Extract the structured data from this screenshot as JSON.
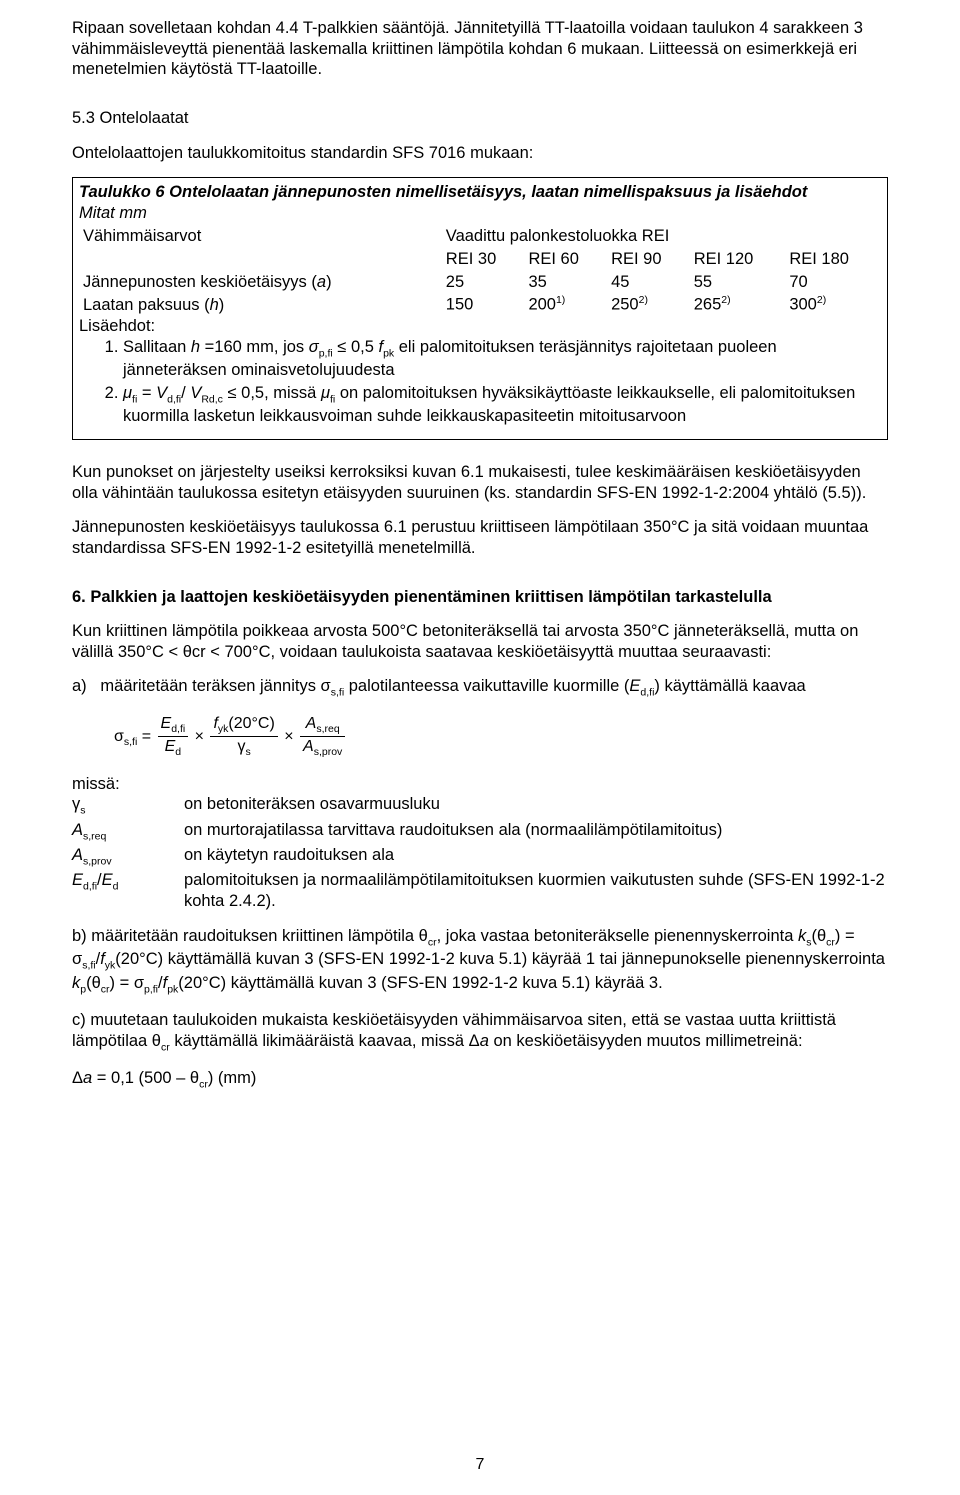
{
  "p1": "Ripaan sovelletaan kohdan 4.4 T-palkkien sääntöjä. Jännitetyillä TT-laatoilla voidaan taulukon 4 sarakkeen 3 vähimmäisleveyttä pienentää laskemalla kriittinen lämpötila kohdan 6 mukaan. Liitteessä on esimerkkejä eri menetelmien käytöstä TT-laatoille.",
  "h53": "5.3 Ontelolaatat",
  "p2": "Ontelolaattojen taulukkomitoitus standardin SFS 7016 mukaan:",
  "tbl": {
    "title": "Taulukko 6 Ontelolaatan jännepunosten nimellisetäisyys, laatan nimellispaksuus ja lisäehdot",
    "sub": "Mitat mm",
    "rowMin": "Vähimmäisarvot",
    "rowReq": "Vaadittu palonkestoluokka REI",
    "hdr": [
      "REI 30",
      "REI 60",
      "REI 90",
      "REI 120",
      "REI 180"
    ],
    "r1lbl": "Jännepunosten keskiöetäisyys (a)",
    "r1": [
      "25",
      "35",
      "45",
      "55",
      "70"
    ],
    "r2lbl": "Laatan paksuus (h)",
    "r2": [
      "150",
      "200",
      "250",
      "265",
      "300"
    ],
    "r2sup": [
      "",
      "1)",
      "2)",
      "2)",
      "2)"
    ],
    "cond": "Lisäehdot:",
    "c1": "Sallitaan h =160 mm, jos σp,fi ≤ 0,5 fpk eli palomitoituksen teräsjännitys rajoitetaan puoleen jänneteräksen ominaisvetolujuudesta",
    "c2": "μfi = Vd,fi/ VRd,c ≤ 0,5, missä μfi on palomitoituksen hyväksikäyttöaste leikkaukselle, eli palomitoituksen kuormilla lasketun leikkausvoiman suhde leikkauskapasiteetin mitoitusarvoon"
  },
  "p3": "Kun punokset on järjestelty useiksi kerroksiksi kuvan 6.1 mukaisesti, tulee keskimääräisen keskiöetäisyyden olla vähintään taulukossa esitetyn etäisyyden suuruinen (ks. standardin SFS-EN 1992-1-2:2004 yhtälö (5.5)).",
  "p4": "Jännepunosten keskiöetäisyys taulukossa 6.1 perustuu kriittiseen lämpötilaan 350°C ja sitä voidaan muuntaa standardissa SFS-EN 1992-1-2 esitetyillä menetelmillä.",
  "h6": "6. Palkkien ja laattojen keskiöetäisyyden pienentäminen kriittisen lämpötilan tarkastelulla",
  "p5a": "Kun kriittinen lämpötila poikkeaa arvosta 500°C betoniteräksellä tai arvosta 350°C jänneteräksellä, mutta on välillä 350°C ",
  "p5b": " θcr ",
  "p5c": " 700°C, voidaan taulukoista saatavaa keskiöetäisyyttä muuttaa seuraavasti:",
  "pa": "a)   määritetään teräksen jännitys σs,fi palotilanteessa vaikuttaville kuormille (Ed,fi) käyttämällä kaavaa",
  "defs": {
    "missa": "missä:",
    "k1": "γs",
    "v1": "on betoniteräksen osavarmuusluku",
    "k2": "As,req",
    "v2": "on murtorajatilassa tarvittava raudoituksen ala (normaalilämpötilamitoitus)",
    "k3": "As,prov",
    "v3": "on käytetyn raudoituksen ala",
    "k4": "Ed,fi/Ed",
    "v4": "palomitoituksen ja normaalilämpötilamitoituksen kuormien vaikutusten suhde (SFS-EN 1992-1-2 kohta 2.4.2)."
  },
  "pb": "b) määritetään raudoituksen kriittinen lämpötila θcr, joka vastaa betoniteräkselle pienennyskerrointa ks(θcr) = σs,fi/fyk(20°C) käyttämällä kuvan 3 (SFS-EN 1992-1-2 kuva 5.1) käyrää 1 tai jännepunokselle pienennyskerrointa kp(θcr) = σp,fi/fpk(20°C) käyttämällä kuvan 3 (SFS-EN 1992-1-2 kuva 5.1) käyrää 3.",
  "pc": "c) muutetaan taulukoiden mukaista keskiöetäisyyden vähimmäisarvoa siten, että se vastaa uutta kriittistä lämpötilaa θcr käyttämällä likimääräistä kaavaa, missä Δa on keskiöetäisyyden muutos millimetreinä:",
  "pd": "Δa = 0,1 (500 – θcr) (mm)",
  "pagenum": "7"
}
